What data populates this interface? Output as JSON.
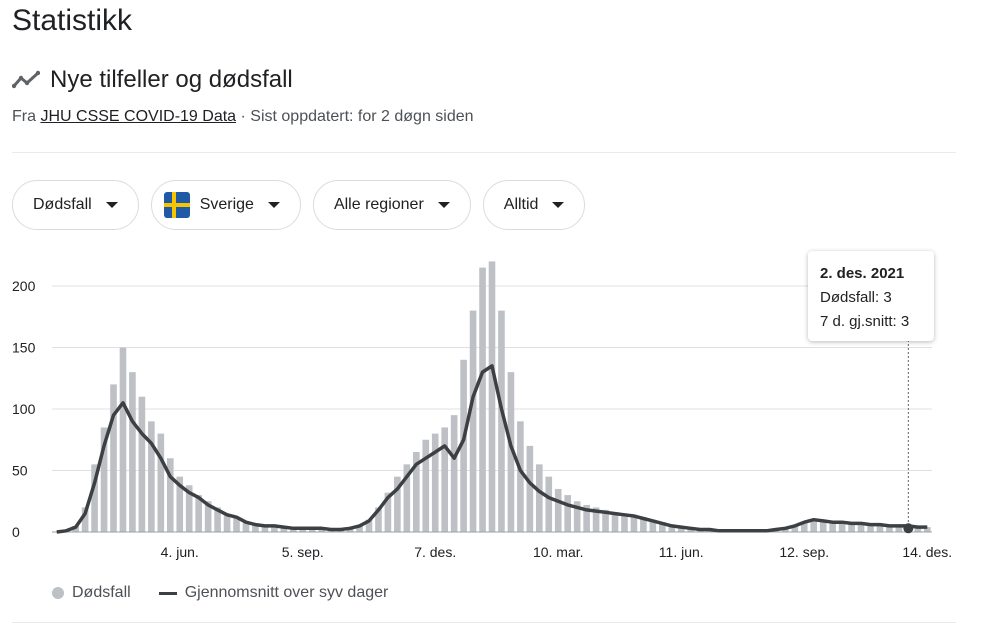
{
  "page": {
    "title": "Statistikk"
  },
  "section": {
    "title": "Nye tilfeller og dødsfall",
    "icon": "trending-line-icon",
    "source_prefix": "Fra",
    "source_link": "JHU CSSE COVID-19 Data",
    "source_suffix": "· Sist oppdatert: for 2 døgn siden"
  },
  "filters": {
    "metric": "Dødsfall",
    "country": "Sverige",
    "region": "Alle regioner",
    "period": "Alltid"
  },
  "colors": {
    "bar": "#bdc1c6",
    "line": "#3c4043",
    "grid": "#e0e0e0",
    "flag_blue": "#1f5aa6",
    "flag_yellow": "#f6c500"
  },
  "tooltip": {
    "date": "2. des. 2021",
    "deaths": "Dødsfall: 3",
    "avg": "7 d. gj.snitt: 3"
  },
  "legend": {
    "bars": "Dødsfall",
    "line": "Gjennomsnitt over syv dager"
  },
  "chart_data": {
    "type": "bar",
    "title": "",
    "x_type": "weekly date index starting week of 2020-03-05",
    "ylim": [
      0,
      230
    ],
    "yticks": [
      0,
      50,
      100,
      150,
      200
    ],
    "xticks": [
      {
        "label": "4. jun.",
        "week": 13
      },
      {
        "label": "5. sep.",
        "week": 26
      },
      {
        "label": "7. des.",
        "week": 40
      },
      {
        "label": "10. mar.",
        "week": 53
      },
      {
        "label": "11. jun.",
        "week": 66
      },
      {
        "label": "12. sep.",
        "week": 79
      },
      {
        "label": "14. des.",
        "week": 92
      }
    ],
    "series": [
      {
        "name": "Dødsfall",
        "kind": "bars",
        "values": [
          0,
          1,
          5,
          20,
          55,
          85,
          120,
          150,
          130,
          110,
          90,
          80,
          60,
          45,
          38,
          30,
          25,
          20,
          15,
          12,
          8,
          6,
          5,
          5,
          4,
          3,
          3,
          3,
          3,
          2,
          2,
          3,
          5,
          10,
          20,
          32,
          45,
          55,
          65,
          75,
          80,
          85,
          95,
          140,
          180,
          215,
          220,
          180,
          130,
          90,
          70,
          55,
          45,
          35,
          30,
          25,
          22,
          20,
          18,
          16,
          15,
          14,
          12,
          10,
          8,
          6,
          4,
          3,
          2,
          2,
          1,
          1,
          1,
          1,
          1,
          1,
          2,
          3,
          5,
          8,
          10,
          9,
          8,
          8,
          7,
          7,
          6,
          6,
          5,
          5,
          5,
          4,
          4
        ]
      },
      {
        "name": "Gjennomsnitt over syv dager",
        "kind": "line",
        "values": [
          0,
          1,
          4,
          15,
          40,
          70,
          95,
          105,
          90,
          80,
          72,
          60,
          45,
          38,
          32,
          28,
          22,
          18,
          14,
          12,
          8,
          6,
          5,
          5,
          4,
          3,
          3,
          3,
          3,
          2,
          2,
          3,
          5,
          9,
          18,
          28,
          35,
          45,
          55,
          60,
          65,
          70,
          60,
          75,
          110,
          130,
          135,
          100,
          70,
          50,
          40,
          33,
          28,
          25,
          22,
          20,
          18,
          17,
          16,
          15,
          14,
          13,
          11,
          9,
          7,
          5,
          4,
          3,
          2,
          2,
          1,
          1,
          1,
          1,
          1,
          1,
          2,
          3,
          5,
          8,
          10,
          9,
          8,
          8,
          7,
          7,
          6,
          6,
          5,
          5,
          5,
          4,
          4
        ]
      }
    ],
    "highlight": {
      "date": "2. des. 2021",
      "deaths": 3,
      "avg": 3
    }
  }
}
